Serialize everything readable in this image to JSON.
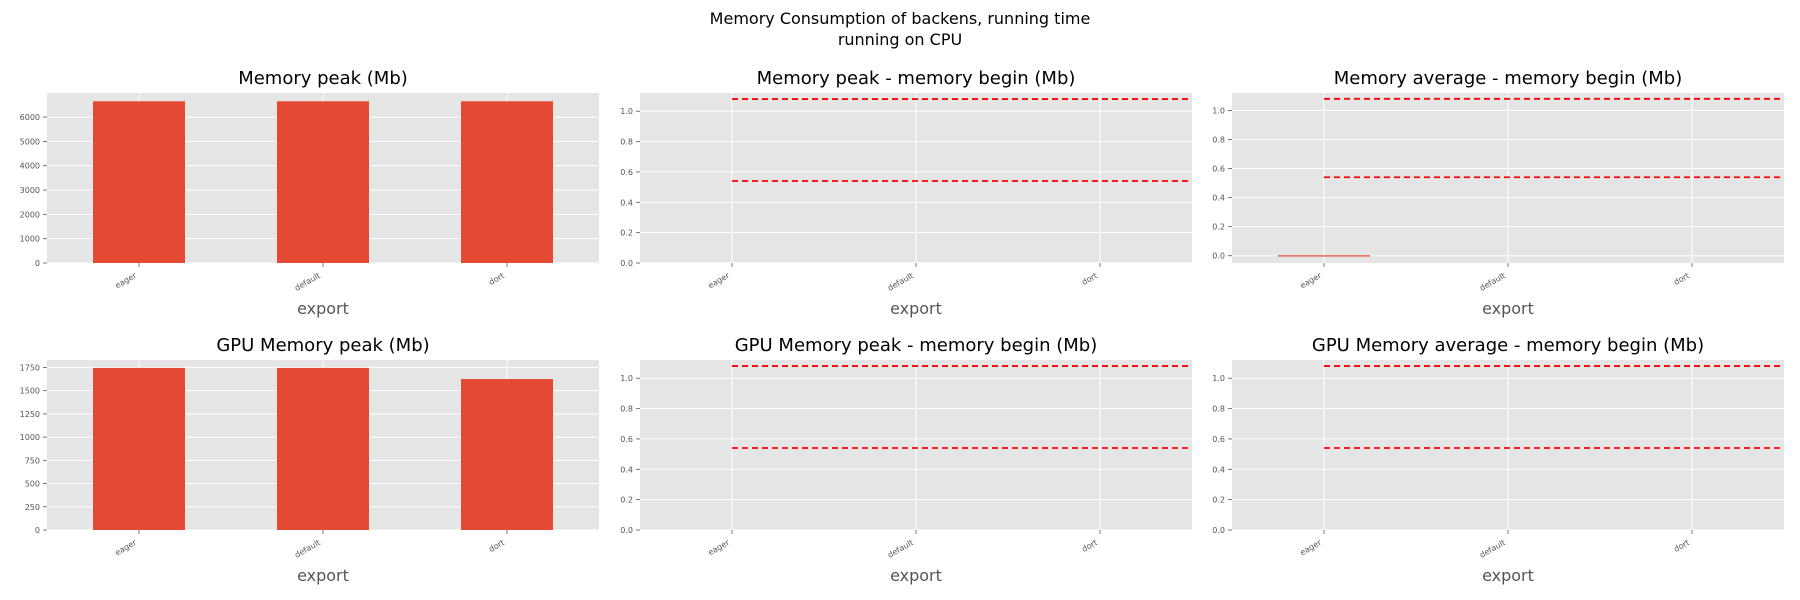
{
  "figure": {
    "suptitle_line1": "Memory Consumption of backens, running time",
    "suptitle_line2": "running on CPU"
  },
  "colors": {
    "bar": "#E24A33",
    "ref_line": "#FF0000",
    "plot_bg": "#E5E5E5",
    "grid": "#FFFFFF",
    "tick_text": "#555555"
  },
  "chart_data": [
    {
      "type": "bar",
      "title": "Memory peak (Mb)",
      "xlabel": "export",
      "ylabel": "",
      "categories": [
        "eager",
        "default",
        "dort"
      ],
      "values": [
        6650,
        6650,
        6650
      ],
      "ylim": [
        0,
        6990
      ],
      "yticks": [
        0,
        1000,
        2000,
        3000,
        4000,
        5000,
        6000
      ],
      "grid": true,
      "legend": "none"
    },
    {
      "type": "bar",
      "title": "Memory peak - memory begin (Mb)",
      "xlabel": "export",
      "ylabel": "",
      "categories": [
        "eager",
        "default",
        "dort"
      ],
      "values": [
        0,
        0,
        0
      ],
      "ylim": [
        0,
        1.12
      ],
      "yticks": [
        0.0,
        0.2,
        0.4,
        0.6,
        0.8,
        1.0
      ],
      "hlines": [
        1.08,
        0.54
      ],
      "grid": true,
      "legend": "none"
    },
    {
      "type": "bar",
      "title": "Memory average - memory begin (Mb)",
      "xlabel": "export",
      "ylabel": "",
      "categories": [
        "eager",
        "default",
        "dort"
      ],
      "values": [
        0.003,
        0,
        0
      ],
      "ylim": [
        -0.05,
        1.12
      ],
      "yticks": [
        0.0,
        0.2,
        0.4,
        0.6,
        0.8,
        1.0
      ],
      "hlines": [
        1.08,
        0.54
      ],
      "grid": true,
      "legend": "none"
    },
    {
      "type": "bar",
      "title": "GPU Memory peak (Mb)",
      "xlabel": "export",
      "ylabel": "",
      "categories": [
        "eager",
        "default",
        "dort"
      ],
      "values": [
        1745,
        1745,
        1625
      ],
      "ylim": [
        0,
        1830
      ],
      "yticks": [
        0,
        250,
        500,
        750,
        1000,
        1250,
        1500,
        1750
      ],
      "grid": true,
      "legend": "none"
    },
    {
      "type": "bar",
      "title": "GPU Memory peak - memory begin (Mb)",
      "xlabel": "export",
      "ylabel": "",
      "categories": [
        "eager",
        "default",
        "dort"
      ],
      "values": [
        0,
        0,
        0
      ],
      "ylim": [
        0,
        1.12
      ],
      "yticks": [
        0.0,
        0.2,
        0.4,
        0.6,
        0.8,
        1.0
      ],
      "hlines": [
        1.08,
        0.54
      ],
      "grid": true,
      "legend": "none"
    },
    {
      "type": "bar",
      "title": "GPU Memory average - memory begin (Mb)",
      "xlabel": "export",
      "ylabel": "",
      "categories": [
        "eager",
        "default",
        "dort"
      ],
      "values": [
        0,
        0,
        0
      ],
      "ylim": [
        0,
        1.12
      ],
      "yticks": [
        0.0,
        0.2,
        0.4,
        0.6,
        0.8,
        1.0
      ],
      "hlines": [
        1.08,
        0.54
      ],
      "grid": true,
      "legend": "none"
    }
  ]
}
